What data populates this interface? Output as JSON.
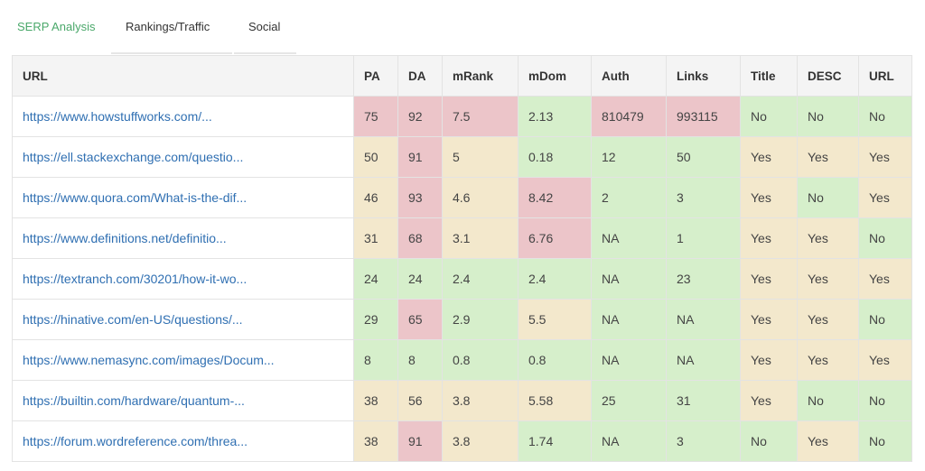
{
  "tabs": [
    {
      "label": "SERP Analysis",
      "active": true
    },
    {
      "label": "Rankings/Traffic",
      "active": false
    },
    {
      "label": "Social",
      "active": false
    }
  ],
  "colors": {
    "active_tab": "#4aa86a",
    "link": "#2f6fb2",
    "good": "#d6efcb",
    "warning": "#f3e8cc",
    "bad": "#ecc5c9"
  },
  "table": {
    "columns": [
      "URL",
      "PA",
      "DA",
      "mRank",
      "mDom",
      "Auth",
      "Links",
      "Title",
      "DESC",
      "URL"
    ],
    "rows": [
      {
        "cells": [
          {
            "v": "https://www.howstuffworks.com/..."
          },
          {
            "v": "75",
            "s": "r"
          },
          {
            "v": "92",
            "s": "r"
          },
          {
            "v": "7.5",
            "s": "r"
          },
          {
            "v": "2.13",
            "s": "g"
          },
          {
            "v": "810479",
            "s": "r"
          },
          {
            "v": "993115",
            "s": "r"
          },
          {
            "v": "No",
            "s": "g"
          },
          {
            "v": "No",
            "s": "g"
          },
          {
            "v": "No",
            "s": "g"
          }
        ]
      },
      {
        "cells": [
          {
            "v": "https://ell.stackexchange.com/questio..."
          },
          {
            "v": "50",
            "s": "y"
          },
          {
            "v": "91",
            "s": "r"
          },
          {
            "v": "5",
            "s": "y"
          },
          {
            "v": "0.18",
            "s": "g"
          },
          {
            "v": "12",
            "s": "g"
          },
          {
            "v": "50",
            "s": "g"
          },
          {
            "v": "Yes",
            "s": "y"
          },
          {
            "v": "Yes",
            "s": "y"
          },
          {
            "v": "Yes",
            "s": "y"
          }
        ]
      },
      {
        "cells": [
          {
            "v": "https://www.quora.com/What-is-the-dif..."
          },
          {
            "v": "46",
            "s": "y"
          },
          {
            "v": "93",
            "s": "r"
          },
          {
            "v": "4.6",
            "s": "y"
          },
          {
            "v": "8.42",
            "s": "r"
          },
          {
            "v": "2",
            "s": "g"
          },
          {
            "v": "3",
            "s": "g"
          },
          {
            "v": "Yes",
            "s": "y"
          },
          {
            "v": "No",
            "s": "g"
          },
          {
            "v": "Yes",
            "s": "y"
          }
        ]
      },
      {
        "cells": [
          {
            "v": "https://www.definitions.net/definitio..."
          },
          {
            "v": "31",
            "s": "y"
          },
          {
            "v": "68",
            "s": "r"
          },
          {
            "v": "3.1",
            "s": "y"
          },
          {
            "v": "6.76",
            "s": "r"
          },
          {
            "v": "NA",
            "s": "g"
          },
          {
            "v": "1",
            "s": "g"
          },
          {
            "v": "Yes",
            "s": "y"
          },
          {
            "v": "Yes",
            "s": "y"
          },
          {
            "v": "No",
            "s": "g"
          }
        ]
      },
      {
        "cells": [
          {
            "v": "https://textranch.com/30201/how-it-wo..."
          },
          {
            "v": "24",
            "s": "g"
          },
          {
            "v": "24",
            "s": "g"
          },
          {
            "v": "2.4",
            "s": "g"
          },
          {
            "v": "2.4",
            "s": "g"
          },
          {
            "v": "NA",
            "s": "g"
          },
          {
            "v": "23",
            "s": "g"
          },
          {
            "v": "Yes",
            "s": "y"
          },
          {
            "v": "Yes",
            "s": "y"
          },
          {
            "v": "Yes",
            "s": "y"
          }
        ]
      },
      {
        "cells": [
          {
            "v": "https://hinative.com/en-US/questions/..."
          },
          {
            "v": "29",
            "s": "g"
          },
          {
            "v": "65",
            "s": "r"
          },
          {
            "v": "2.9",
            "s": "g"
          },
          {
            "v": "5.5",
            "s": "y"
          },
          {
            "v": "NA",
            "s": "g"
          },
          {
            "v": "NA",
            "s": "g"
          },
          {
            "v": "Yes",
            "s": "y"
          },
          {
            "v": "Yes",
            "s": "y"
          },
          {
            "v": "No",
            "s": "g"
          }
        ]
      },
      {
        "cells": [
          {
            "v": "https://www.nemasync.com/images/Docum..."
          },
          {
            "v": "8",
            "s": "g"
          },
          {
            "v": "8",
            "s": "g"
          },
          {
            "v": "0.8",
            "s": "g"
          },
          {
            "v": "0.8",
            "s": "g"
          },
          {
            "v": "NA",
            "s": "g"
          },
          {
            "v": "NA",
            "s": "g"
          },
          {
            "v": "Yes",
            "s": "y"
          },
          {
            "v": "Yes",
            "s": "y"
          },
          {
            "v": "Yes",
            "s": "y"
          }
        ]
      },
      {
        "cells": [
          {
            "v": "https://builtin.com/hardware/quantum-..."
          },
          {
            "v": "38",
            "s": "y"
          },
          {
            "v": "56",
            "s": "y"
          },
          {
            "v": "3.8",
            "s": "y"
          },
          {
            "v": "5.58",
            "s": "y"
          },
          {
            "v": "25",
            "s": "g"
          },
          {
            "v": "31",
            "s": "g"
          },
          {
            "v": "Yes",
            "s": "y"
          },
          {
            "v": "No",
            "s": "g"
          },
          {
            "v": "No",
            "s": "g"
          }
        ]
      },
      {
        "cells": [
          {
            "v": "https://forum.wordreference.com/threa..."
          },
          {
            "v": "38",
            "s": "y"
          },
          {
            "v": "91",
            "s": "r"
          },
          {
            "v": "3.8",
            "s": "y"
          },
          {
            "v": "1.74",
            "s": "g"
          },
          {
            "v": "NA",
            "s": "g"
          },
          {
            "v": "3",
            "s": "g"
          },
          {
            "v": "No",
            "s": "g"
          },
          {
            "v": "Yes",
            "s": "y"
          },
          {
            "v": "No",
            "s": "g"
          }
        ]
      }
    ]
  }
}
